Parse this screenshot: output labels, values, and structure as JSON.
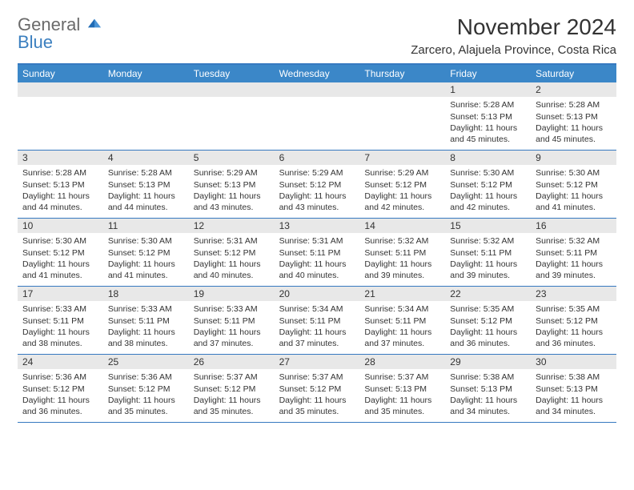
{
  "logo": {
    "line1": "General",
    "line2": "Blue"
  },
  "title": "November 2024",
  "location": "Zarcero, Alajuela Province, Costa Rica",
  "colors": {
    "header_bg": "#3b87c8",
    "rule": "#3679c0",
    "daynum_bg": "#e8e8e8",
    "text": "#333333",
    "logo_gray": "#6a6a6a",
    "logo_blue": "#3b7fbf",
    "page_bg": "#ffffff"
  },
  "weekdays": [
    "Sunday",
    "Monday",
    "Tuesday",
    "Wednesday",
    "Thursday",
    "Friday",
    "Saturday"
  ],
  "weeks": [
    [
      null,
      null,
      null,
      null,
      null,
      {
        "n": "1",
        "sunrise": "Sunrise: 5:28 AM",
        "sunset": "Sunset: 5:13 PM",
        "daylight": "Daylight: 11 hours and 45 minutes."
      },
      {
        "n": "2",
        "sunrise": "Sunrise: 5:28 AM",
        "sunset": "Sunset: 5:13 PM",
        "daylight": "Daylight: 11 hours and 45 minutes."
      }
    ],
    [
      {
        "n": "3",
        "sunrise": "Sunrise: 5:28 AM",
        "sunset": "Sunset: 5:13 PM",
        "daylight": "Daylight: 11 hours and 44 minutes."
      },
      {
        "n": "4",
        "sunrise": "Sunrise: 5:28 AM",
        "sunset": "Sunset: 5:13 PM",
        "daylight": "Daylight: 11 hours and 44 minutes."
      },
      {
        "n": "5",
        "sunrise": "Sunrise: 5:29 AM",
        "sunset": "Sunset: 5:13 PM",
        "daylight": "Daylight: 11 hours and 43 minutes."
      },
      {
        "n": "6",
        "sunrise": "Sunrise: 5:29 AM",
        "sunset": "Sunset: 5:12 PM",
        "daylight": "Daylight: 11 hours and 43 minutes."
      },
      {
        "n": "7",
        "sunrise": "Sunrise: 5:29 AM",
        "sunset": "Sunset: 5:12 PM",
        "daylight": "Daylight: 11 hours and 42 minutes."
      },
      {
        "n": "8",
        "sunrise": "Sunrise: 5:30 AM",
        "sunset": "Sunset: 5:12 PM",
        "daylight": "Daylight: 11 hours and 42 minutes."
      },
      {
        "n": "9",
        "sunrise": "Sunrise: 5:30 AM",
        "sunset": "Sunset: 5:12 PM",
        "daylight": "Daylight: 11 hours and 41 minutes."
      }
    ],
    [
      {
        "n": "10",
        "sunrise": "Sunrise: 5:30 AM",
        "sunset": "Sunset: 5:12 PM",
        "daylight": "Daylight: 11 hours and 41 minutes."
      },
      {
        "n": "11",
        "sunrise": "Sunrise: 5:30 AM",
        "sunset": "Sunset: 5:12 PM",
        "daylight": "Daylight: 11 hours and 41 minutes."
      },
      {
        "n": "12",
        "sunrise": "Sunrise: 5:31 AM",
        "sunset": "Sunset: 5:12 PM",
        "daylight": "Daylight: 11 hours and 40 minutes."
      },
      {
        "n": "13",
        "sunrise": "Sunrise: 5:31 AM",
        "sunset": "Sunset: 5:11 PM",
        "daylight": "Daylight: 11 hours and 40 minutes."
      },
      {
        "n": "14",
        "sunrise": "Sunrise: 5:32 AM",
        "sunset": "Sunset: 5:11 PM",
        "daylight": "Daylight: 11 hours and 39 minutes."
      },
      {
        "n": "15",
        "sunrise": "Sunrise: 5:32 AM",
        "sunset": "Sunset: 5:11 PM",
        "daylight": "Daylight: 11 hours and 39 minutes."
      },
      {
        "n": "16",
        "sunrise": "Sunrise: 5:32 AM",
        "sunset": "Sunset: 5:11 PM",
        "daylight": "Daylight: 11 hours and 39 minutes."
      }
    ],
    [
      {
        "n": "17",
        "sunrise": "Sunrise: 5:33 AM",
        "sunset": "Sunset: 5:11 PM",
        "daylight": "Daylight: 11 hours and 38 minutes."
      },
      {
        "n": "18",
        "sunrise": "Sunrise: 5:33 AM",
        "sunset": "Sunset: 5:11 PM",
        "daylight": "Daylight: 11 hours and 38 minutes."
      },
      {
        "n": "19",
        "sunrise": "Sunrise: 5:33 AM",
        "sunset": "Sunset: 5:11 PM",
        "daylight": "Daylight: 11 hours and 37 minutes."
      },
      {
        "n": "20",
        "sunrise": "Sunrise: 5:34 AM",
        "sunset": "Sunset: 5:11 PM",
        "daylight": "Daylight: 11 hours and 37 minutes."
      },
      {
        "n": "21",
        "sunrise": "Sunrise: 5:34 AM",
        "sunset": "Sunset: 5:11 PM",
        "daylight": "Daylight: 11 hours and 37 minutes."
      },
      {
        "n": "22",
        "sunrise": "Sunrise: 5:35 AM",
        "sunset": "Sunset: 5:12 PM",
        "daylight": "Daylight: 11 hours and 36 minutes."
      },
      {
        "n": "23",
        "sunrise": "Sunrise: 5:35 AM",
        "sunset": "Sunset: 5:12 PM",
        "daylight": "Daylight: 11 hours and 36 minutes."
      }
    ],
    [
      {
        "n": "24",
        "sunrise": "Sunrise: 5:36 AM",
        "sunset": "Sunset: 5:12 PM",
        "daylight": "Daylight: 11 hours and 36 minutes."
      },
      {
        "n": "25",
        "sunrise": "Sunrise: 5:36 AM",
        "sunset": "Sunset: 5:12 PM",
        "daylight": "Daylight: 11 hours and 35 minutes."
      },
      {
        "n": "26",
        "sunrise": "Sunrise: 5:37 AM",
        "sunset": "Sunset: 5:12 PM",
        "daylight": "Daylight: 11 hours and 35 minutes."
      },
      {
        "n": "27",
        "sunrise": "Sunrise: 5:37 AM",
        "sunset": "Sunset: 5:12 PM",
        "daylight": "Daylight: 11 hours and 35 minutes."
      },
      {
        "n": "28",
        "sunrise": "Sunrise: 5:37 AM",
        "sunset": "Sunset: 5:13 PM",
        "daylight": "Daylight: 11 hours and 35 minutes."
      },
      {
        "n": "29",
        "sunrise": "Sunrise: 5:38 AM",
        "sunset": "Sunset: 5:13 PM",
        "daylight": "Daylight: 11 hours and 34 minutes."
      },
      {
        "n": "30",
        "sunrise": "Sunrise: 5:38 AM",
        "sunset": "Sunset: 5:13 PM",
        "daylight": "Daylight: 11 hours and 34 minutes."
      }
    ]
  ]
}
